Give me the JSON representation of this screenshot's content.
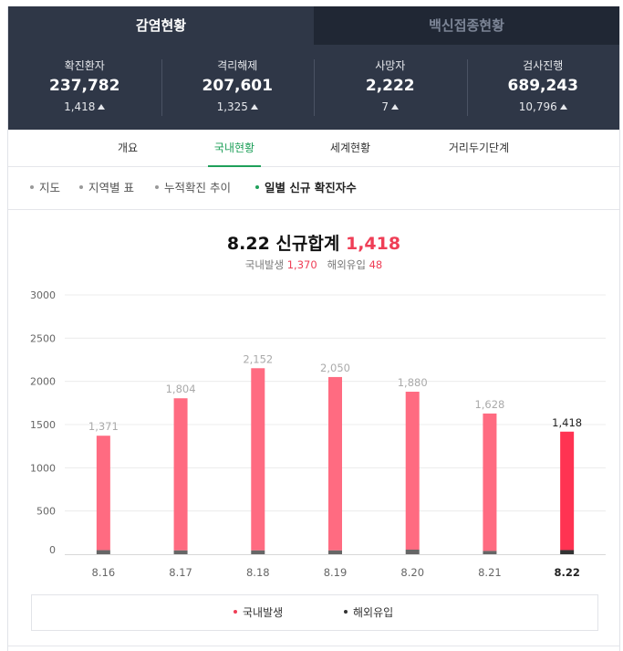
{
  "tabs": {
    "active_label": "감염현황",
    "inactive_label": "백신접종현황"
  },
  "stats": [
    {
      "label": "확진환자",
      "value": "237,782",
      "delta": "1,418"
    },
    {
      "label": "격리해제",
      "value": "207,601",
      "delta": "1,325"
    },
    {
      "label": "사망자",
      "value": "2,222",
      "delta": "7"
    },
    {
      "label": "검사진행",
      "value": "689,243",
      "delta": "10,796"
    }
  ],
  "subtabs": [
    {
      "label": "개요"
    },
    {
      "label": "국내현황",
      "active": true
    },
    {
      "label": "세계현황"
    },
    {
      "label": "거리두기단계"
    }
  ],
  "filters": [
    {
      "label": "지도"
    },
    {
      "label": "지역별 표"
    },
    {
      "label": "누적확진 추이"
    },
    {
      "label": "일별 신규 확진자수",
      "active": true
    }
  ],
  "chart_header": {
    "title_prefix": "8.22 신규합계",
    "title_total": "1,418",
    "domestic_label": "국내발생",
    "domestic_value": "1,370",
    "imported_label": "해외유입",
    "imported_value": "48"
  },
  "colors": {
    "domestic": "#ff6b81",
    "domestic_latest": "#ff3352",
    "imported": "#666666",
    "imported_latest": "#333333",
    "accent_green": "#1fa05a",
    "accent_red": "#ef3e56"
  },
  "chart_data": {
    "type": "bar",
    "stacked": true,
    "categories": [
      "8.16",
      "8.17",
      "8.18",
      "8.19",
      "8.20",
      "8.21",
      "8.22"
    ],
    "series": [
      {
        "name": "국내발생",
        "values": [
          1324,
          1760,
          2108,
          2006,
          1827,
          1590,
          1370
        ]
      },
      {
        "name": "해외유입",
        "values": [
          47,
          44,
          44,
          44,
          53,
          38,
          48
        ]
      }
    ],
    "totals": [
      1371,
      1804,
      2152,
      2050,
      1880,
      1628,
      1418
    ],
    "total_labels": [
      "1,371",
      "1,804",
      "2,152",
      "2,050",
      "1,880",
      "1,628",
      "1,418"
    ],
    "yticks": [
      "3000",
      "2500",
      "2000",
      "1500",
      "1000",
      "500",
      "0"
    ],
    "ylim": [
      0,
      3000
    ],
    "highlight_last": true,
    "grid": true,
    "legend": "bottom-center",
    "xlabel": "",
    "ylabel": ""
  }
}
